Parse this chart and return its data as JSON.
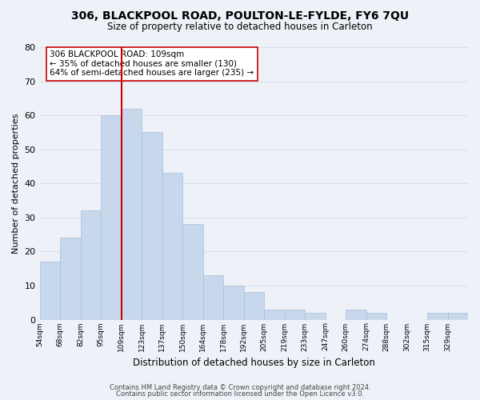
{
  "title": "306, BLACKPOOL ROAD, POULTON-LE-FYLDE, FY6 7QU",
  "subtitle": "Size of property relative to detached houses in Carleton",
  "xlabel": "Distribution of detached houses by size in Carleton",
  "ylabel": "Number of detached properties",
  "bar_color": "#c8d8ec",
  "bar_edge_color": "#a8bcd8",
  "grid_color": "#d8e0ec",
  "vline_x": 4,
  "vline_color": "#cc0000",
  "annotation_text": "306 BLACKPOOL ROAD: 109sqm\n← 35% of detached houses are smaller (130)\n64% of semi-detached houses are larger (235) →",
  "annotation_box_color": "#ffffff",
  "annotation_box_edge": "#cc0000",
  "bin_labels": [
    "54sqm",
    "68sqm",
    "82sqm",
    "95sqm",
    "109sqm",
    "123sqm",
    "137sqm",
    "150sqm",
    "164sqm",
    "178sqm",
    "192sqm",
    "205sqm",
    "219sqm",
    "233sqm",
    "247sqm",
    "260sqm",
    "274sqm",
    "288sqm",
    "302sqm",
    "315sqm",
    "329sqm"
  ],
  "values": [
    17,
    24,
    32,
    60,
    62,
    55,
    43,
    28,
    13,
    10,
    8,
    3,
    3,
    2,
    0,
    3,
    2,
    0,
    0,
    2,
    2
  ],
  "ylim": [
    0,
    80
  ],
  "yticks": [
    0,
    10,
    20,
    30,
    40,
    50,
    60,
    70,
    80
  ],
  "footer1": "Contains HM Land Registry data © Crown copyright and database right 2024.",
  "footer2": "Contains public sector information licensed under the Open Licence v3.0.",
  "background_color": "#eef2f8"
}
